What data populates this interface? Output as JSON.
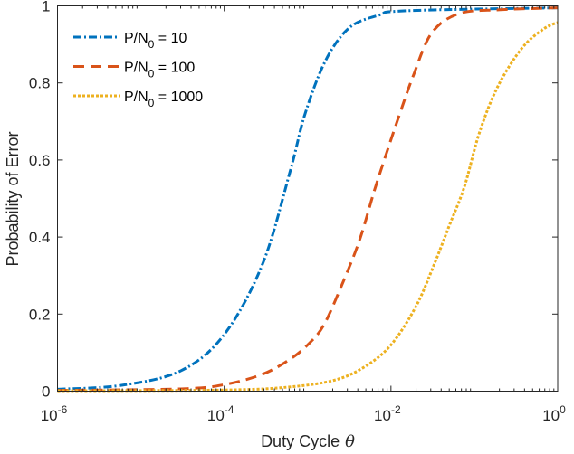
{
  "chart_data": {
    "type": "line",
    "xscale": "log",
    "xlabel": "Duty Cycle",
    "xlabel_symbol": "θ",
    "ylabel": "Probability of Error",
    "xlim_log10": [
      -6,
      0
    ],
    "ylim": [
      0,
      1
    ],
    "grid": false,
    "legend_placement": "top-left",
    "xticks": [
      {
        "base": "10",
        "exp": "-6",
        "log10": -6
      },
      {
        "base": "10",
        "exp": "-4",
        "log10": -4
      },
      {
        "base": "10",
        "exp": "-2",
        "log10": -2
      },
      {
        "base": "10",
        "exp": "0",
        "log10": 0
      }
    ],
    "yticks": [
      {
        "label": "0",
        "value": 0
      },
      {
        "label": "0.2",
        "value": 0.2
      },
      {
        "label": "0.4",
        "value": 0.4
      },
      {
        "label": "0.6",
        "value": 0.6
      },
      {
        "label": "0.8",
        "value": 0.8
      },
      {
        "label": "1",
        "value": 1
      }
    ],
    "series": [
      {
        "name_main": "P/N",
        "name_sub": "0",
        "name_rest": " = 10",
        "color": "#0072BD",
        "style": "dashdot",
        "log10_x": [
          -6,
          -5.24,
          -4.52,
          -4.0,
          -3.54,
          -3.21,
          -3.03,
          -2.78,
          -2.49,
          -2.13,
          -2.0,
          -1.4,
          0
        ],
        "y": [
          0.005,
          0.015,
          0.053,
          0.147,
          0.33,
          0.57,
          0.72,
          0.86,
          0.945,
          0.977,
          0.985,
          0.99,
          0.995
        ]
      },
      {
        "name_main": "P/N",
        "name_sub": "0",
        "name_rest": " = 100",
        "color": "#D95319",
        "style": "dashed",
        "log10_x": [
          -6,
          -4.52,
          -4.0,
          -3.54,
          -3.21,
          -3.0,
          -2.81,
          -2.6,
          -2.38,
          -2.2,
          -2.05,
          -1.91,
          -1.73,
          -1.51,
          -1.18,
          -0.69,
          0
        ],
        "y": [
          0.002,
          0.006,
          0.017,
          0.044,
          0.083,
          0.12,
          0.17,
          0.27,
          0.39,
          0.52,
          0.62,
          0.71,
          0.82,
          0.93,
          0.98,
          0.99,
          0.995
        ]
      },
      {
        "name_main": "P/N",
        "name_sub": "0",
        "name_rest": " = 1000",
        "color": "#EDB120",
        "style": "dotted",
        "log10_x": [
          -6,
          -4.0,
          -3.21,
          -2.67,
          -2.31,
          -2.0,
          -1.7,
          -1.48,
          -1.3,
          -1.12,
          -0.94,
          -0.72,
          -0.43,
          -0.17,
          0
        ],
        "y": [
          0.001,
          0.003,
          0.011,
          0.029,
          0.064,
          0.12,
          0.22,
          0.33,
          0.43,
          0.53,
          0.67,
          0.79,
          0.89,
          0.94,
          0.957
        ]
      }
    ]
  }
}
